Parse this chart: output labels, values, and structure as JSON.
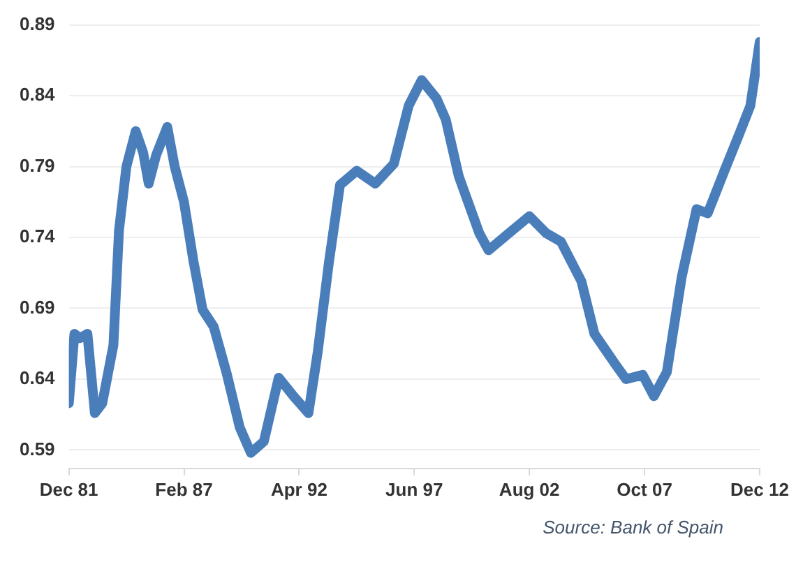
{
  "chart_data": {
    "type": "line",
    "x": [
      "1981-12",
      "1982-03",
      "1982-06",
      "1982-10",
      "1983-02",
      "1983-06",
      "1983-12",
      "1984-03",
      "1984-07",
      "1984-12",
      "1985-04",
      "1985-07",
      "1985-11",
      "1986-05",
      "1986-09",
      "1987-02",
      "1987-07",
      "1987-12",
      "1988-06",
      "1989-01",
      "1989-08",
      "1990-02",
      "1990-09",
      "1991-05",
      "1992-01",
      "1992-09",
      "1993-02",
      "1993-08",
      "1994-02",
      "1994-11",
      "1995-09",
      "1996-07",
      "1997-03",
      "1997-10",
      "1998-06",
      "1998-11",
      "1999-06",
      "2000-05",
      "2000-10",
      "2001-09",
      "2002-08",
      "2003-05",
      "2004-01",
      "2004-12",
      "2005-07",
      "2006-06",
      "2006-12",
      "2007-09",
      "2008-03",
      "2008-10",
      "2009-06",
      "2010-02",
      "2010-08",
      "2011-05",
      "2012-01",
      "2012-07",
      "2012-12"
    ],
    "series": [
      {
        "color": "#4a7ebb",
        "values": [
          0.623,
          0.672,
          0.669,
          0.672,
          0.616,
          0.623,
          0.664,
          0.745,
          0.79,
          0.815,
          0.8,
          0.778,
          0.798,
          0.818,
          0.79,
          0.765,
          0.724,
          0.689,
          0.677,
          0.644,
          0.606,
          0.588,
          0.596,
          0.641,
          0.628,
          0.616,
          0.659,
          0.722,
          0.777,
          0.787,
          0.778,
          0.792,
          0.833,
          0.851,
          0.838,
          0.823,
          0.783,
          0.743,
          0.731,
          0.743,
          0.755,
          0.743,
          0.737,
          0.709,
          0.672,
          0.651,
          0.64,
          0.643,
          0.628,
          0.645,
          0.712,
          0.76,
          0.757,
          0.787,
          0.813,
          0.833,
          0.878
        ]
      }
    ],
    "xlim": [
      "1981-12",
      "2012-12"
    ],
    "xticks": [
      {
        "value": "1981-12",
        "label": "Dec 81"
      },
      {
        "value": "1987-02",
        "label": "Feb 87"
      },
      {
        "value": "1992-04",
        "label": "Apr 92"
      },
      {
        "value": "1997-06",
        "label": "Jun 97"
      },
      {
        "value": "2002-08",
        "label": "Aug 02"
      },
      {
        "value": "2007-10",
        "label": "Oct 07"
      },
      {
        "value": "2012-12",
        "label": "Dec 12"
      }
    ],
    "ylim": [
      0.577,
      0.89
    ],
    "yticks": [
      0.59,
      0.64,
      0.69,
      0.74,
      0.79,
      0.84,
      0.89
    ],
    "grid": "y",
    "legend": false,
    "marker": "none",
    "line_style": "solid",
    "annotations": [
      "Source: Bank of Spain"
    ]
  }
}
